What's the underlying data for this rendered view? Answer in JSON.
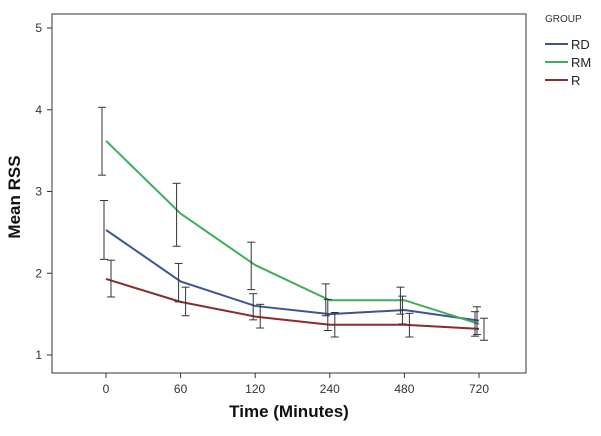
{
  "chart_data": {
    "type": "line",
    "xlabel": "Time (Minutes)",
    "ylabel": "Mean RSS",
    "categories": [
      "0",
      "60",
      "120",
      "240",
      "480",
      "720"
    ],
    "ylim": [
      0.85,
      5.1
    ],
    "yticks": [
      1,
      2,
      3,
      4,
      5
    ],
    "grid": false,
    "legend": {
      "title": "GROUP",
      "placement": "right-top"
    },
    "series": [
      {
        "name": "RD",
        "color": "#3f5394",
        "values": [
          2.53,
          1.9,
          1.6,
          1.5,
          1.55,
          1.42
        ],
        "error_low": [
          2.17,
          1.65,
          1.43,
          1.3,
          1.38,
          1.25
        ],
        "error_high": [
          2.89,
          2.12,
          1.75,
          1.68,
          1.72,
          1.59
        ]
      },
      {
        "name": "RM",
        "color": "#3fae5a",
        "values": [
          3.62,
          2.73,
          2.1,
          1.67,
          1.67,
          1.38
        ],
        "error_low": [
          3.2,
          2.33,
          1.8,
          1.48,
          1.5,
          1.23
        ],
        "error_high": [
          4.03,
          3.1,
          2.38,
          1.87,
          1.83,
          1.53
        ]
      },
      {
        "name": "R",
        "color": "#8b2b2b",
        "values": [
          1.93,
          1.65,
          1.47,
          1.37,
          1.37,
          1.32
        ],
        "error_low": [
          1.71,
          1.48,
          1.33,
          1.22,
          1.22,
          1.18
        ],
        "error_high": [
          2.16,
          1.83,
          1.62,
          1.52,
          1.51,
          1.45
        ]
      }
    ]
  }
}
